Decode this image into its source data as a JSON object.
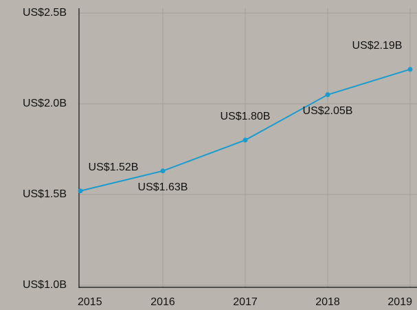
{
  "chart_data": {
    "type": "line",
    "x": [
      2015,
      2016,
      2017,
      2018,
      2019
    ],
    "xlim": [
      2015,
      2019
    ],
    "xticks": [
      2015,
      2016,
      2017,
      2018,
      2019
    ],
    "series": [
      {
        "color": "#1a9bd0",
        "values": [
          1.52,
          1.63,
          1.8,
          2.05,
          2.19
        ],
        "value_labels": [
          "US$1.52B",
          "US$1.63B",
          "US$1.80B",
          "US$2.05B",
          "US$2.19B"
        ]
      }
    ],
    "ylim": [
      1.0,
      2.5
    ],
    "yticks": [
      {
        "value": 1.0,
        "label": "US$1.0B"
      },
      {
        "value": 1.5,
        "label": "US$1.5B"
      },
      {
        "value": 2.0,
        "label": "US$2.0B"
      },
      {
        "value": 2.5,
        "label": "US$2.5B"
      }
    ],
    "grid": true
  }
}
